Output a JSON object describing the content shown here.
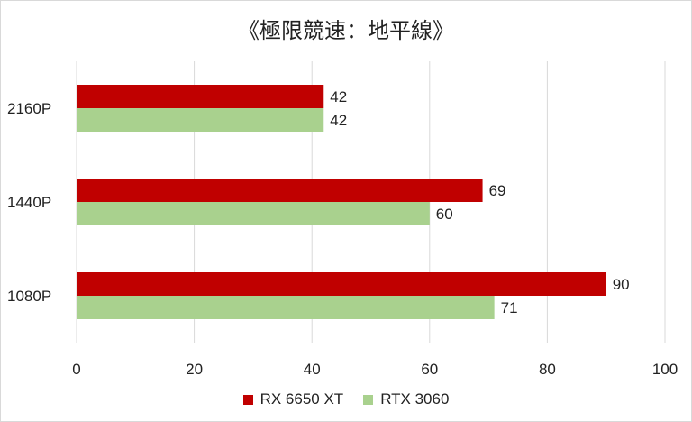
{
  "chart_data": {
    "type": "bar",
    "orientation": "horizontal",
    "title": "《極限競速：地平線》",
    "categories": [
      "2160P",
      "1440P",
      "1080P"
    ],
    "series": [
      {
        "name": "RX 6650 XT",
        "color": "#c00000",
        "values": [
          42,
          69,
          90
        ]
      },
      {
        "name": "RTX 3060",
        "color": "#a9d18e",
        "values": [
          42,
          60,
          71
        ]
      }
    ],
    "xlim": [
      0,
      100
    ],
    "xticks": [
      0,
      20,
      40,
      60,
      80,
      100
    ],
    "grid": true,
    "legend": "bottom"
  }
}
